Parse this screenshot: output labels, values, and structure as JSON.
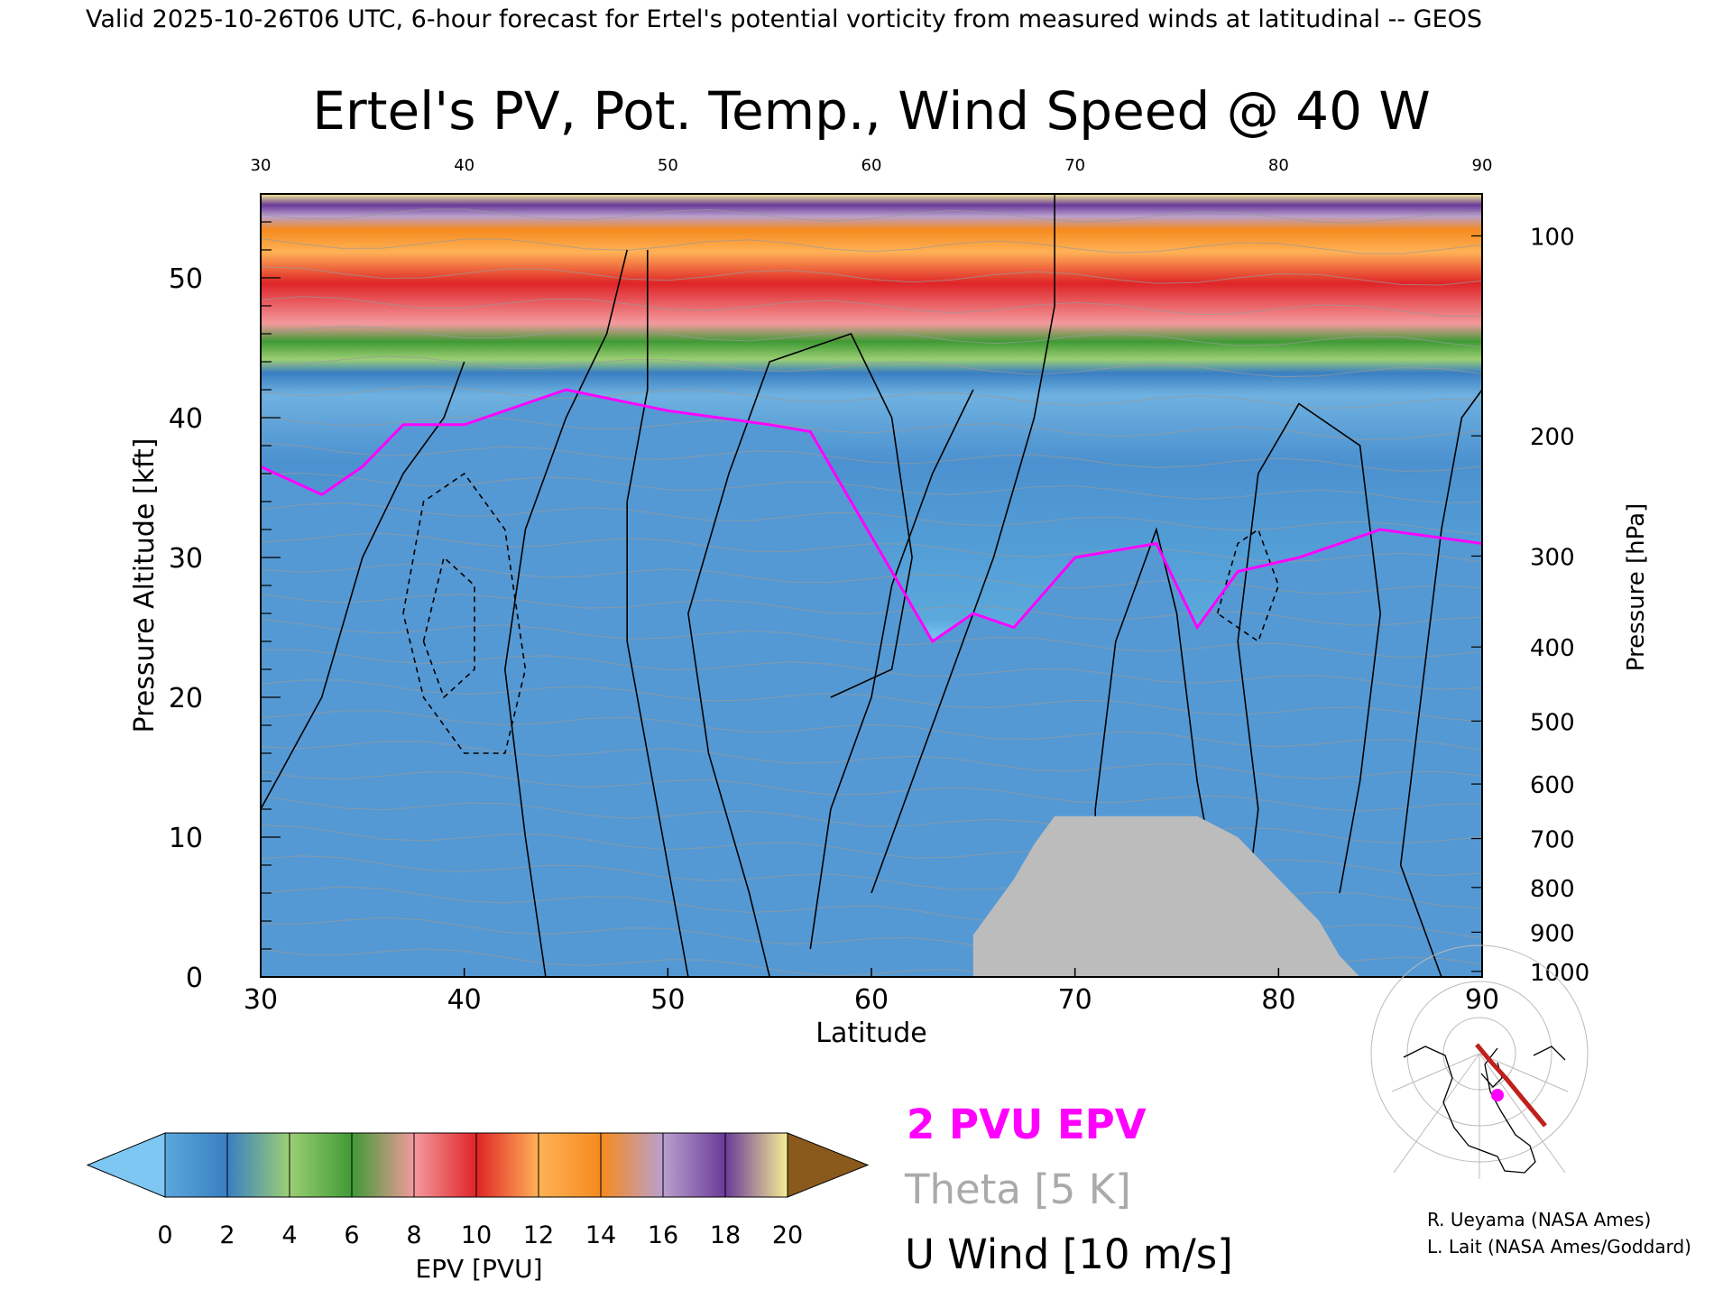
{
  "header": {
    "valid_line": "Valid 2025-10-26T06 UTC, 6-hour forecast for Ertel's potential vorticity from measured winds at latitudinal -- GEOS"
  },
  "chart_data": {
    "type": "heatmap",
    "title": "Ertel's PV, Pot. Temp., Wind Speed @ 40 W",
    "xlabel": "Latitude",
    "ylabel_left": "Pressure Altitude [kft]",
    "ylabel_right": "Pressure [hPa]",
    "xlim": [
      30,
      90
    ],
    "ylim": [
      0,
      56
    ],
    "x_ticks": [
      "30",
      "40",
      "50",
      "60",
      "70",
      "80",
      "90"
    ],
    "top_ticks": [
      "30",
      "40",
      "50",
      "60",
      "70",
      "80",
      "90"
    ],
    "y_ticks": [
      "0",
      "10",
      "20",
      "30",
      "40",
      "50"
    ],
    "pressure_ticks": [
      {
        "label": "100",
        "kft": 53.0
      },
      {
        "label": "200",
        "kft": 38.7
      },
      {
        "label": "300",
        "kft": 30.1
      },
      {
        "label": "400",
        "kft": 23.6
      },
      {
        "label": "500",
        "kft": 18.3
      },
      {
        "label": "600",
        "kft": 13.8
      },
      {
        "label": "700",
        "kft": 9.9
      },
      {
        "label": "800",
        "kft": 6.4
      },
      {
        "label": "900",
        "kft": 3.2
      },
      {
        "label": "1000",
        "kft": 0.4
      }
    ],
    "tropopause_2pvu_kft": [
      {
        "lat": 30,
        "kft": 36.5
      },
      {
        "lat": 33,
        "kft": 34.5
      },
      {
        "lat": 35,
        "kft": 36.5
      },
      {
        "lat": 37,
        "kft": 39.5
      },
      {
        "lat": 40,
        "kft": 39.5
      },
      {
        "lat": 45,
        "kft": 42
      },
      {
        "lat": 50,
        "kft": 40.5
      },
      {
        "lat": 55,
        "kft": 39.5
      },
      {
        "lat": 57,
        "kft": 39
      },
      {
        "lat": 59,
        "kft": 34
      },
      {
        "lat": 61,
        "kft": 29
      },
      {
        "lat": 63,
        "kft": 24
      },
      {
        "lat": 65,
        "kft": 26
      },
      {
        "lat": 67,
        "kft": 25
      },
      {
        "lat": 70,
        "kft": 30
      },
      {
        "lat": 74,
        "kft": 31
      },
      {
        "lat": 76,
        "kft": 25
      },
      {
        "lat": 78,
        "kft": 29
      },
      {
        "lat": 81,
        "kft": 30
      },
      {
        "lat": 85,
        "kft": 32
      },
      {
        "lat": 90,
        "kft": 31
      }
    ],
    "terrain_mask_kft": [
      {
        "lat": 65,
        "kft": 3
      },
      {
        "lat": 66,
        "kft": 5
      },
      {
        "lat": 67,
        "kft": 7
      },
      {
        "lat": 68,
        "kft": 9.5
      },
      {
        "lat": 69,
        "kft": 11.5
      },
      {
        "lat": 76,
        "kft": 11.5
      },
      {
        "lat": 78,
        "kft": 10
      },
      {
        "lat": 80,
        "kft": 7
      },
      {
        "lat": 82,
        "kft": 4
      },
      {
        "lat": 83,
        "kft": 1.5
      },
      {
        "lat": 84,
        "kft": 0
      }
    ],
    "colorbar": {
      "label": "EPV [PVU]",
      "ticks": [
        "0",
        "2",
        "4",
        "6",
        "8",
        "10",
        "12",
        "14",
        "16",
        "18",
        "20"
      ],
      "colors": [
        "#5aa8dc",
        "#3a7fc2",
        "#9ccf74",
        "#3f9a35",
        "#f39a9e",
        "#df2427",
        "#ffb257",
        "#f58a1e",
        "#b9a0cd",
        "#6a3a99",
        "#f5ee94",
        "#8a5a1d"
      ],
      "under_color": "#7fc7f3",
      "over_color": "#8a5a1d"
    },
    "legend": [
      {
        "label": "2 PVU EPV",
        "color": "#ff00ff"
      },
      {
        "label": "Theta [5 K]",
        "color": "#aaaaaa"
      },
      {
        "label": "U Wind [10 m/s]",
        "color": "#000000"
      }
    ]
  },
  "credits": {
    "line1": "R. Ueyama (NASA Ames)",
    "line2": "L. Lait (NASA Ames/Goddard)"
  }
}
